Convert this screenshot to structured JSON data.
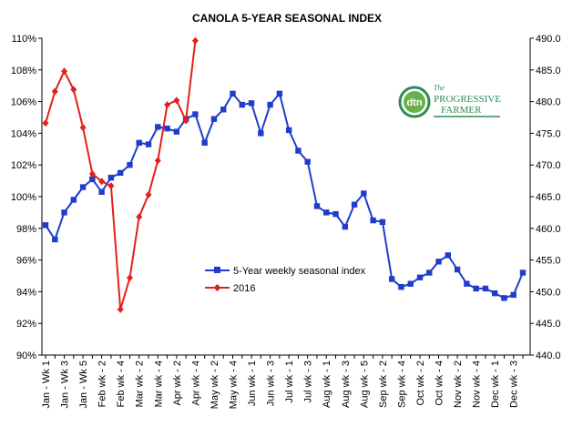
{
  "chart_data": {
    "type": "line",
    "title": "CANOLA 5-YEAR SEASONAL INDEX",
    "left_axis": {
      "min": 90,
      "max": 110,
      "step": 2,
      "tick_labels": [
        "90%",
        "92%",
        "94%",
        "96%",
        "98%",
        "100%",
        "102%",
        "104%",
        "106%",
        "108%",
        "110%"
      ]
    },
    "right_axis": {
      "min": 440,
      "max": 490,
      "step": 5,
      "tick_labels": [
        "440.0",
        "445.0",
        "450.0",
        "455.0",
        "460.0",
        "465.0",
        "470.0",
        "475.0",
        "480.0",
        "485.0",
        "490.0"
      ]
    },
    "x_count": 52,
    "x_tick_labels": [
      "Jan - Wk 1",
      "Jan - Wk 3",
      "Jan - Wk 5",
      "Feb wk - 2",
      "Feb wk - 4",
      "Mar wk - 2",
      "Mar wk - 4",
      "Apr wk - 2",
      "Apr wk - 4",
      "May wk - 2",
      "May wk - 4",
      "Jun wk - 1",
      "Jun wk - 3",
      "Jul wk - 1",
      "Jul wk - 3",
      "Aug wk - 1",
      "Aug wk - 3",
      "Aug wk - 5",
      "Sep wk - 2",
      "Sep wk - 4",
      "Oct wk - 2",
      "Oct wk - 4",
      "Nov wk - 2",
      "Nov wk - 4",
      "Dec wk - 1",
      "Dec wk - 3"
    ],
    "series": [
      {
        "name": "5-Year weekly seasonal index",
        "axis": "left",
        "color": "#1f3ccc",
        "marker": "square",
        "values": [
          98.2,
          97.3,
          99.0,
          99.8,
          100.6,
          101.1,
          100.3,
          101.2,
          101.5,
          102.0,
          103.4,
          103.3,
          104.4,
          104.3,
          104.1,
          104.9,
          105.2,
          103.4,
          104.9,
          105.5,
          106.5,
          105.8,
          105.9,
          104.0,
          105.8,
          106.5,
          104.2,
          102.9,
          102.2,
          99.4,
          99.0,
          98.9,
          98.1,
          99.5,
          100.2,
          98.5,
          98.4,
          94.8,
          94.3,
          94.5,
          94.9,
          95.2,
          95.9,
          96.3,
          95.4,
          94.5,
          94.2,
          94.2,
          93.9,
          93.6,
          93.8,
          95.2
        ]
      },
      {
        "name": "2016",
        "axis": "right",
        "color": "#e3201b",
        "marker": "diamond",
        "values": [
          476.6,
          481.6,
          484.8,
          481.9,
          475.9,
          468.6,
          467.4,
          466.7,
          447.2,
          452.2,
          461.8,
          465.3,
          470.7,
          479.5,
          480.2,
          477.0,
          489.6
        ]
      }
    ],
    "legend": {
      "position": "center",
      "entries": [
        "5-Year weekly seasonal index",
        "2016"
      ]
    },
    "grid": false
  },
  "logo": {
    "abbr": "dtn",
    "line1": "PROGRESSIVE",
    "line2": "FARMER",
    "prefix": "The"
  }
}
